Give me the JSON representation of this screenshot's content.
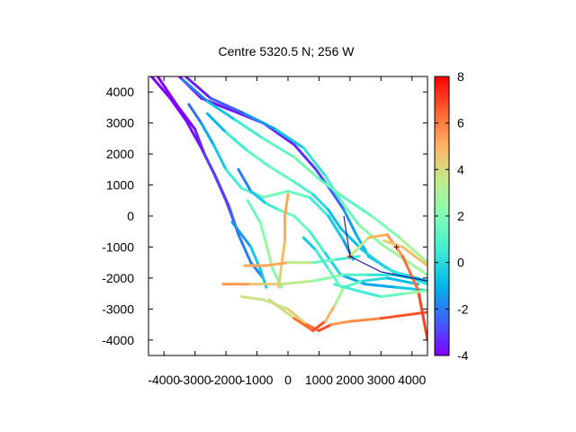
{
  "chart_data": {
    "type": "scatter",
    "title": "Centre 5320.5 N; 256  W",
    "xlabel": "",
    "ylabel": "",
    "xlim": [
      -4500,
      4500
    ],
    "ylim": [
      -4500,
      4500
    ],
    "x_ticks": [
      -4000,
      -3000,
      -2000,
      -1000,
      0,
      1000,
      2000,
      3000,
      4000
    ],
    "x_tick_labels": [
      "-4000",
      "-3000",
      "-2000",
      "-1000",
      "0",
      "1000",
      "2000",
      "3000",
      "4000"
    ],
    "y_ticks": [
      4000,
      3000,
      2000,
      1000,
      0,
      -1000,
      -2000,
      -3000,
      -4000
    ],
    "y_tick_labels": [
      "4000",
      "3000",
      "2000",
      "1000",
      "0",
      "-1000",
      "-2000",
      "-3000",
      "-4000"
    ],
    "grid": false,
    "colorbar": {
      "range": [
        -4,
        8
      ],
      "ticks": [
        8,
        6,
        4,
        2,
        0,
        -2,
        -4
      ],
      "tick_labels": [
        "8",
        "6",
        "4",
        "2",
        "0",
        "-2",
        "-4"
      ],
      "palette": [
        "#7f00ff",
        "#3f61fa",
        "#00b5eb",
        "#40ecd4",
        "#80feb3",
        "#c0eb8d",
        "#ffb462",
        "#ff6130",
        "#ff0000"
      ]
    },
    "tracks": [
      {
        "values": [
          -4400,
          4500,
          -4.0
        ],
        "points": [
          [
            -4400,
            4500
          ],
          [
            -3800,
            3800
          ],
          [
            -3300,
            3100
          ],
          [
            -2800,
            2200
          ],
          [
            -2400,
            1400
          ],
          [
            -2000,
            500
          ],
          [
            -1700,
            -300
          ]
        ],
        "v": [
          -4,
          -4,
          -4,
          -3.5,
          -3.8,
          -3.5,
          -3
        ]
      },
      {
        "points": [
          [
            -4200,
            4500
          ],
          [
            -3600,
            3600
          ],
          [
            -3000,
            2800
          ],
          [
            -2700,
            2000
          ],
          [
            -2300,
            1200
          ],
          [
            -1900,
            300
          ],
          [
            -1600,
            -600
          ],
          [
            -1200,
            -1500
          ],
          [
            -800,
            -2000
          ]
        ],
        "v": [
          -4,
          -4,
          -4,
          -3,
          -3,
          -3,
          -2,
          -2,
          -2
        ]
      },
      {
        "points": [
          [
            -3500,
            4500
          ],
          [
            -2800,
            3800
          ],
          [
            -1800,
            3400
          ],
          [
            -800,
            3000
          ],
          [
            200,
            2300
          ],
          [
            900,
            1500
          ],
          [
            1400,
            800
          ],
          [
            1800,
            200
          ],
          [
            2200,
            -600
          ],
          [
            2600,
            -1300
          ],
          [
            3400,
            -1800
          ],
          [
            4500,
            -2100
          ]
        ],
        "v": [
          -4,
          -4,
          -3.5,
          -3.5,
          -3.5,
          -3,
          -3,
          -2,
          -1,
          -1,
          -1,
          -1
        ]
      },
      {
        "points": [
          [
            -3300,
            4500
          ],
          [
            -2500,
            3800
          ],
          [
            -1400,
            3300
          ],
          [
            -400,
            2800
          ],
          [
            500,
            2200
          ],
          [
            1200,
            1300
          ],
          [
            1700,
            500
          ],
          [
            2300,
            -300
          ],
          [
            3000,
            -900
          ],
          [
            4500,
            -1900
          ]
        ],
        "v": [
          -4,
          -3,
          -2,
          -1,
          0,
          0.5,
          1,
          2,
          2.5,
          3
        ]
      },
      {
        "points": [
          [
            -3400,
            4400
          ],
          [
            -2600,
            3700
          ],
          [
            -1700,
            3100
          ],
          [
            -800,
            2500
          ],
          [
            200,
            1900
          ],
          [
            1000,
            1200
          ],
          [
            1800,
            600
          ],
          [
            2700,
            0
          ],
          [
            3600,
            -700
          ],
          [
            4500,
            -1500
          ]
        ],
        "v": [
          -3,
          -1,
          0,
          1,
          1.5,
          2,
          1,
          1.5,
          2.5,
          3.5
        ]
      },
      {
        "points": [
          [
            -3200,
            3600
          ],
          [
            -2800,
            3000
          ],
          [
            -2400,
            2300
          ],
          [
            -2000,
            1500
          ],
          [
            -1500,
            900
          ],
          [
            -800,
            600
          ],
          [
            0,
            800
          ],
          [
            700,
            600
          ],
          [
            1300,
            0
          ],
          [
            1800,
            -800
          ],
          [
            2100,
            -1400
          ]
        ],
        "v": [
          -3,
          -1.5,
          -1,
          0,
          1,
          1.5,
          2,
          1,
          0,
          -1,
          -2
        ]
      },
      {
        "points": [
          [
            -2600,
            3300
          ],
          [
            -2000,
            2700
          ],
          [
            -1300,
            2100
          ],
          [
            -600,
            1600
          ],
          [
            200,
            1100
          ],
          [
            800,
            700
          ],
          [
            1300,
            200
          ],
          [
            1700,
            -400
          ],
          [
            2400,
            -1100
          ],
          [
            3200,
            -1700
          ],
          [
            4500,
            -2200
          ]
        ],
        "v": [
          -2,
          0,
          1,
          1.5,
          1.5,
          0.5,
          -0.5,
          -1,
          -0.5,
          0,
          0.5
        ]
      },
      {
        "points": [
          [
            -1600,
            1500
          ],
          [
            -1200,
            800
          ],
          [
            -700,
            400
          ],
          [
            -300,
            200
          ],
          [
            200,
            0
          ],
          [
            700,
            -500
          ],
          [
            1200,
            -1200
          ],
          [
            1700,
            -1900
          ],
          [
            2500,
            -2200
          ],
          [
            3500,
            -2300
          ],
          [
            4500,
            -2400
          ]
        ],
        "v": [
          -3,
          -1,
          0,
          1,
          2,
          1,
          0.5,
          -1,
          -1.5,
          -1,
          0
        ]
      },
      {
        "points": [
          [
            -1300,
            500
          ],
          [
            -900,
            -200
          ],
          [
            -700,
            -900
          ],
          [
            -500,
            -1700
          ],
          [
            -200,
            -2300
          ]
        ],
        "v": [
          1,
          2,
          2.5,
          3,
          1
        ]
      },
      {
        "points": [
          [
            -1800,
            -200
          ],
          [
            -1200,
            -1000
          ],
          [
            -900,
            -1700
          ],
          [
            -700,
            -2300
          ]
        ],
        "v": [
          -2,
          -1,
          0,
          -1
        ]
      },
      {
        "points": [
          [
            0,
            700
          ],
          [
            -100,
            0
          ],
          [
            -100,
            -800
          ],
          [
            -200,
            -1500
          ],
          [
            -300,
            -2300
          ]
        ],
        "v": [
          5,
          5.5,
          5,
          4.5,
          4
        ]
      },
      {
        "points": [
          [
            -1400,
            -1600
          ],
          [
            -700,
            -1600
          ],
          [
            0,
            -1500
          ],
          [
            800,
            -1500
          ],
          [
            1600,
            -1400
          ],
          [
            2300,
            -1300
          ]
        ],
        "v": [
          5,
          5.5,
          5,
          2,
          1,
          0
        ]
      },
      {
        "points": [
          [
            -2100,
            -2200
          ],
          [
            -1200,
            -2200
          ],
          [
            -200,
            -2200
          ],
          [
            800,
            -2100
          ],
          [
            1800,
            -1900
          ],
          [
            2600,
            -1900
          ],
          [
            3400,
            -1900
          ],
          [
            4500,
            -2100
          ]
        ],
        "v": [
          6,
          5,
          4,
          3,
          1.5,
          0.5,
          0,
          -1
        ]
      },
      {
        "points": [
          [
            -1500,
            -2600
          ],
          [
            -800,
            -2700
          ],
          [
            0,
            -3000
          ],
          [
            600,
            -3500
          ],
          [
            1000,
            -3700
          ],
          [
            1400,
            -3500
          ],
          [
            2000,
            -3400
          ],
          [
            3000,
            -3300
          ],
          [
            4500,
            -3100
          ]
        ],
        "v": [
          4,
          3.5,
          3.5,
          5,
          7.5,
          6,
          5,
          6.5,
          7
        ]
      },
      {
        "points": [
          [
            -600,
            -2700
          ],
          [
            200,
            -3300
          ],
          [
            800,
            -3700
          ],
          [
            1200,
            -3400
          ],
          [
            1500,
            -2900
          ],
          [
            1800,
            -2300
          ],
          [
            2400,
            -2100
          ],
          [
            3200,
            -2000
          ],
          [
            4200,
            -2200
          ]
        ],
        "v": [
          3,
          5,
          7.5,
          6,
          4,
          2,
          0.5,
          -0.5,
          -1
        ]
      },
      {
        "points": [
          [
            2000,
            -1300
          ],
          [
            2600,
            -700
          ],
          [
            3200,
            -600
          ],
          [
            3700,
            -1300
          ],
          [
            4200,
            -2400
          ],
          [
            4500,
            -4000
          ]
        ],
        "v": [
          2,
          5,
          5,
          6,
          6.5,
          7.5
        ]
      },
      {
        "points": [
          [
            3100,
            -800
          ],
          [
            3700,
            -1000
          ],
          [
            4500,
            -1600
          ]
        ],
        "v": [
          4,
          4.5,
          5
        ]
      },
      {
        "points": [
          [
            1500,
            -2200
          ],
          [
            2200,
            -2400
          ],
          [
            3000,
            -2600
          ],
          [
            3800,
            -2500
          ],
          [
            4500,
            -2400
          ]
        ],
        "v": [
          1,
          0,
          1,
          2,
          3
        ]
      },
      {
        "points": [
          [
            500,
            -700
          ],
          [
            900,
            -1100
          ],
          [
            1300,
            -1700
          ],
          [
            1700,
            -2300
          ]
        ],
        "v": [
          -1,
          0,
          1,
          2
        ]
      }
    ],
    "annotation_line": {
      "points": [
        [
          1800,
          0
        ],
        [
          2000,
          -1300
        ],
        [
          3000,
          -1800
        ],
        [
          4500,
          -2100
        ]
      ],
      "color": "#00008b"
    },
    "markers": [
      [
        2000,
        -1300
      ],
      [
        3500,
        -1000
      ]
    ]
  }
}
